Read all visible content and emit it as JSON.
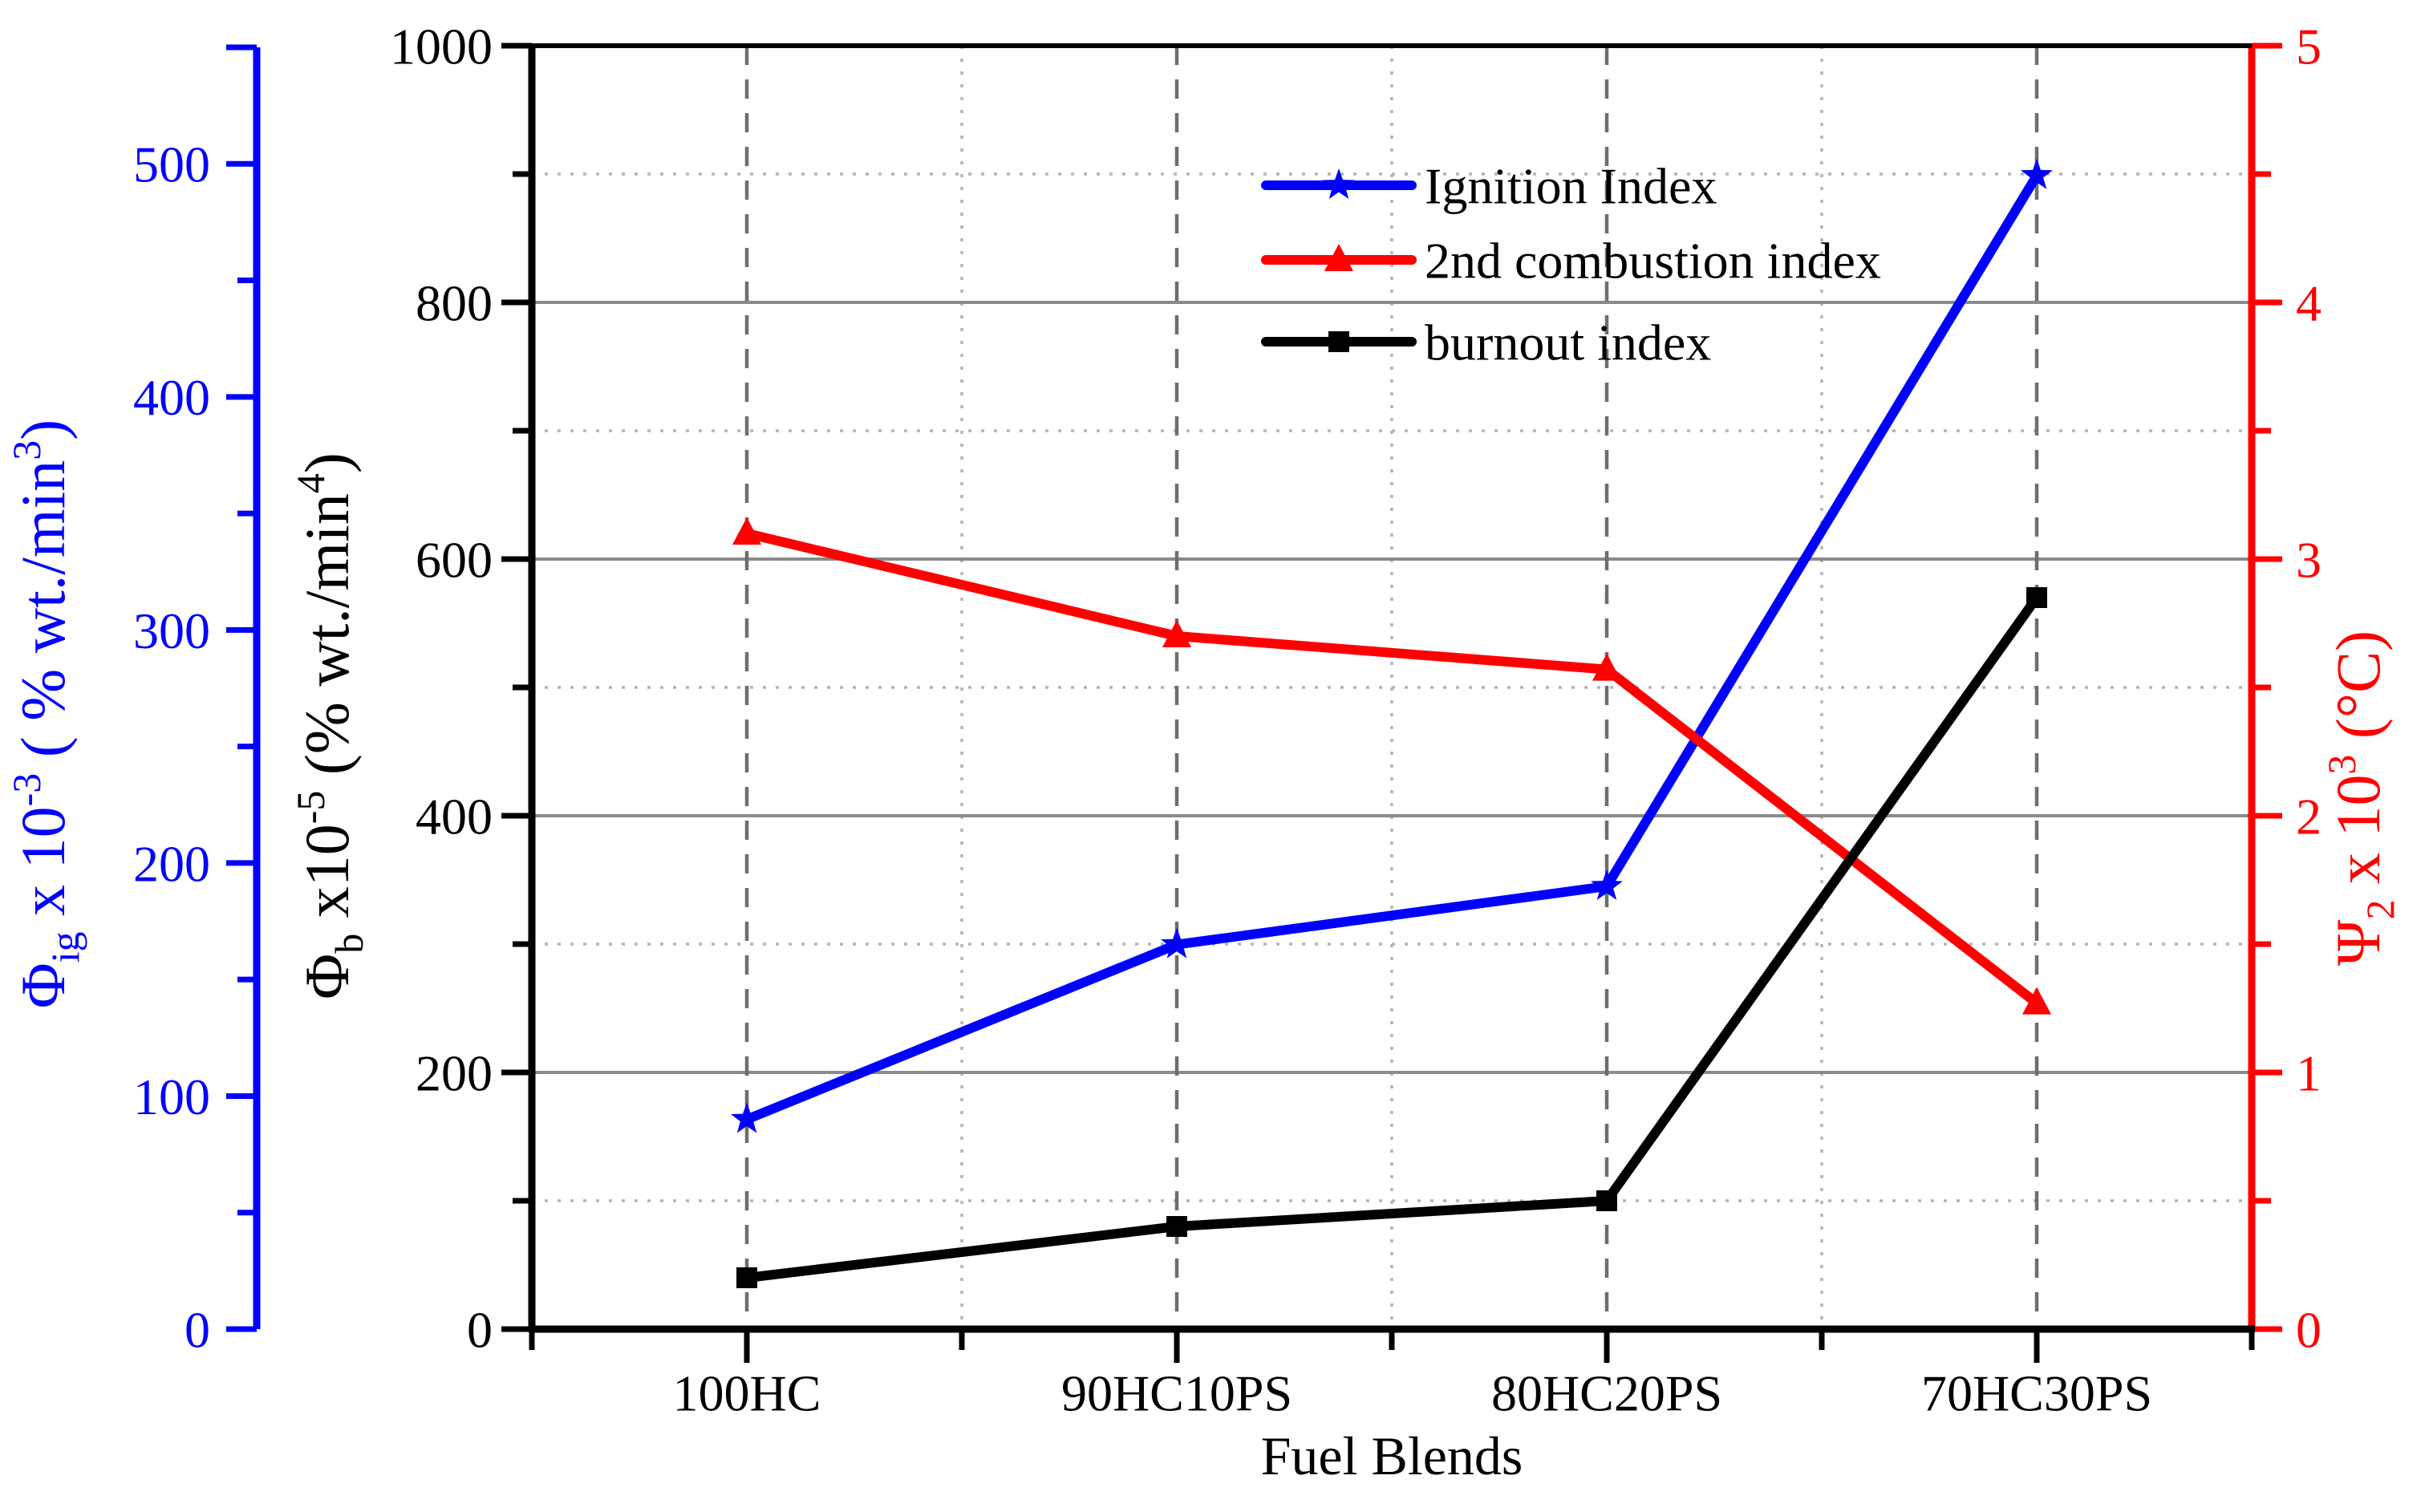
{
  "chart_data": {
    "type": "line",
    "title": "",
    "categories": [
      "100HC",
      "90HC10PS",
      "80HC20PS",
      "70HC30PS"
    ],
    "xlabel": "Fuel Blends",
    "series": [
      {
        "name": "Ignition Index",
        "axis": "blue",
        "color": "#0000ff",
        "marker": "star",
        "values": [
          90,
          165,
          190,
          495
        ]
      },
      {
        "name": "2nd combustion index",
        "axis": "red",
        "color": "#ff0000",
        "marker": "triangle",
        "values": [
          3.1,
          2.7,
          2.57,
          1.27
        ]
      },
      {
        "name": "burnout index",
        "axis": "black",
        "color": "#000000",
        "marker": "square",
        "values": [
          40,
          80,
          100,
          570
        ]
      }
    ],
    "axes": {
      "blue": {
        "side": "outer-left",
        "color": "#0000ff",
        "min": 0,
        "max": 550,
        "major_step": 100,
        "minor_step": 50,
        "tick_labels": [
          "0",
          "100",
          "200",
          "300",
          "400",
          "500"
        ],
        "title_segments": [
          [
            "n",
            "Φ"
          ],
          [
            "sub",
            "ig"
          ],
          [
            "n",
            " x 10"
          ],
          [
            "sup",
            "-3"
          ],
          [
            "n",
            "  ( % wt./min"
          ],
          [
            "sup",
            "3"
          ],
          [
            "n",
            ")"
          ]
        ]
      },
      "black": {
        "side": "left",
        "color": "#000000",
        "min": 0,
        "max": 1000,
        "major_step": 200,
        "minor_step": 100,
        "tick_labels": [
          "0",
          "200",
          "400",
          "600",
          "800",
          "1000"
        ],
        "title_segments": [
          [
            "n",
            "Φ"
          ],
          [
            "sub",
            "b"
          ],
          [
            "n",
            " x10"
          ],
          [
            "sup",
            "-5"
          ],
          [
            "n",
            "  (% wt./min"
          ],
          [
            "sup",
            "4"
          ],
          [
            "n",
            ")"
          ]
        ]
      },
      "red": {
        "side": "right",
        "color": "#ff0000",
        "min": 0,
        "max": 5,
        "major_step": 1,
        "minor_step": 0.5,
        "tick_labels": [
          "0",
          "1",
          "2",
          "3",
          "4",
          "5"
        ],
        "title_segments": [
          [
            "n",
            "Ψ"
          ],
          [
            "sub",
            "2"
          ],
          [
            "n",
            " x 10"
          ],
          [
            "sup",
            "3"
          ],
          [
            "n",
            " (°C)"
          ]
        ]
      }
    },
    "grid": {
      "h_solid_black_values": [
        200,
        400,
        600,
        800
      ],
      "h_dotted_black_values": [
        100,
        300,
        500,
        700,
        900
      ],
      "v_dashed": "at-categories",
      "v_dotted": "at-category-midline-boundaries"
    },
    "legend": {
      "position": "upper-middle",
      "entries": [
        "Ignition Index",
        "2nd combustion index",
        "burnout index"
      ]
    }
  }
}
